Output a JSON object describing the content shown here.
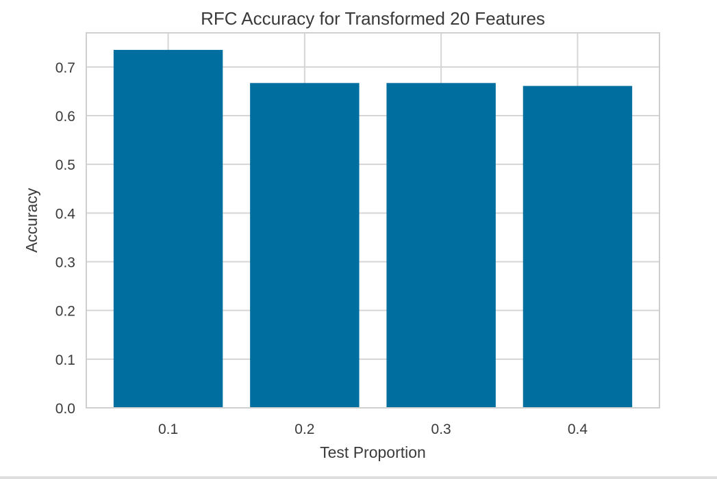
{
  "colors": {
    "bar": "#006fa0",
    "grid": "#d5d5d5",
    "frame": "#cfcfcf",
    "text": "#3a3a3a",
    "background": "#ffffff"
  },
  "chart_data": {
    "type": "bar",
    "title": "RFC Accuracy for Transformed 20 Features",
    "xlabel": "Test Proportion",
    "ylabel": "Accuracy",
    "categories": [
      "0.1",
      "0.2",
      "0.3",
      "0.4"
    ],
    "values": [
      0.735,
      0.667,
      0.667,
      0.661
    ],
    "ylim": [
      0,
      0.77
    ],
    "yticks": [
      0.0,
      0.1,
      0.2,
      0.3,
      0.4,
      0.5,
      0.6,
      0.7
    ],
    "ytick_labels": [
      "0.0",
      "0.1",
      "0.2",
      "0.3",
      "0.4",
      "0.5",
      "0.6",
      "0.7"
    ],
    "grid": true,
    "legend": null
  }
}
